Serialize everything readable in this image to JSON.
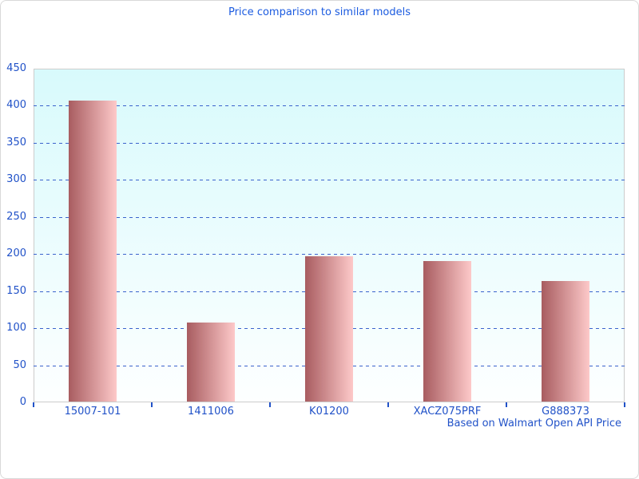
{
  "window": {
    "background": "#ffffff",
    "border_color": "#d9d9d9"
  },
  "chart_data": {
    "type": "bar",
    "title": "Price comparison to similar models",
    "categories": [
      "15007-101",
      "1411006",
      "K01200",
      "XACZ075PRF",
      "G888373"
    ],
    "values": [
      407,
      108,
      197,
      191,
      164
    ],
    "footnote": "Based on Walmart Open API Price",
    "xlabel": "",
    "ylabel": "",
    "ylim": [
      0,
      450
    ],
    "ytick_step": 50,
    "ytick_labels": [
      "0",
      "50",
      "100",
      "150",
      "200",
      "250",
      "300",
      "350",
      "400",
      "450"
    ],
    "grid": "horizontal-dashed",
    "legend": "none",
    "colors": {
      "title_text": "#1b5be0",
      "axis_text": "#2152c8",
      "gridline": "#3a62cc",
      "tick": "#2152c8",
      "bar_gradient_left": "#a85c60",
      "bar_gradient_right": "#fdc9c9",
      "plot_bg_top": "#d8fafc",
      "plot_bg_bottom": "#fdffff",
      "plot_border": "#cccccc"
    }
  }
}
